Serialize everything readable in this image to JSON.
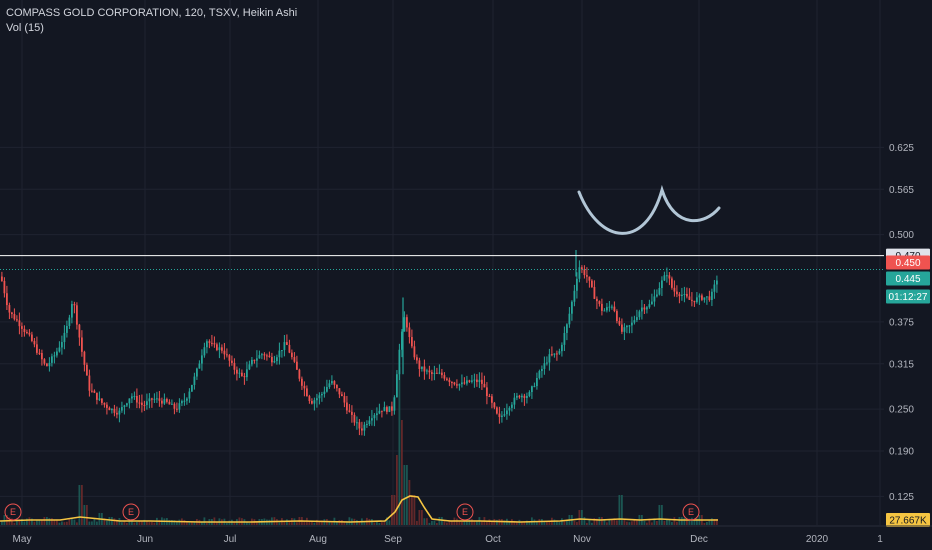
{
  "legend": {
    "title": "COMPASS GOLD CORPORATION, 120, TSXV, Heikin Ashi",
    "vol": "Vol (15)"
  },
  "colors": {
    "background": "#131722",
    "grid": "#1f2330",
    "up": "#26a69a",
    "down": "#ef5350",
    "volume_ma": "#f5c542",
    "pattern": "#b2c6d6",
    "resistance": "#ffffff",
    "dotted": "#26a69a"
  },
  "price_scale": {
    "ticks": [
      "0.625",
      "0.565",
      "0.500",
      "0.375",
      "0.315",
      "0.250",
      "0.190",
      "0.125"
    ],
    "markers": {
      "resistance": "0.470",
      "last": "0.450",
      "prev": "0.445",
      "countdown": "01:12:27",
      "volume": "27.667K"
    }
  },
  "time_scale": {
    "labels": [
      "May",
      "Jun",
      "Jul",
      "Aug",
      "Sep",
      "Oct",
      "Nov",
      "Dec",
      "2020",
      "1"
    ]
  },
  "earnings": {
    "label": "E",
    "count": 5
  },
  "chart_data": {
    "type": "candlestick",
    "style": "Heikin Ashi",
    "symbol": "COMPASS GOLD CORPORATION",
    "interval": "120",
    "exchange": "TSXV",
    "ylim": [
      0.1,
      0.66
    ],
    "x_range": [
      "May",
      "2020"
    ],
    "resistance_level": 0.47,
    "last_price": 0.45,
    "annotations": [
      "horizontal line 0.470",
      "cup and handle curve"
    ],
    "close_path": [
      [
        "May",
        0.44
      ],
      [
        "May",
        0.4
      ],
      [
        "May",
        0.36
      ],
      [
        "May",
        0.31
      ],
      [
        "May",
        0.34
      ],
      [
        "May",
        0.41
      ],
      [
        "May",
        0.33
      ],
      [
        "May",
        0.27
      ],
      [
        "May",
        0.25
      ],
      [
        "Jun",
        0.25
      ],
      [
        "Jun",
        0.27
      ],
      [
        "Jun",
        0.26
      ],
      [
        "Jun",
        0.28
      ],
      [
        "Jun",
        0.26
      ],
      [
        "Jun",
        0.3
      ],
      [
        "Jul",
        0.35
      ],
      [
        "Jul",
        0.32
      ],
      [
        "Jul",
        0.29
      ],
      [
        "Jul",
        0.33
      ],
      [
        "Jul",
        0.3
      ],
      [
        "Jul",
        0.34
      ],
      [
        "Aug",
        0.3
      ],
      [
        "Aug",
        0.27
      ],
      [
        "Aug",
        0.29
      ],
      [
        "Aug",
        0.26
      ],
      [
        "Aug",
        0.23
      ],
      [
        "Aug",
        0.25
      ],
      [
        "Sep",
        0.25
      ],
      [
        "Sep",
        0.26
      ],
      [
        "Sep",
        0.37
      ],
      [
        "Sep",
        0.3
      ],
      [
        "Sep",
        0.31
      ],
      [
        "Sep",
        0.3
      ],
      [
        "Oct",
        0.29
      ],
      [
        "Oct",
        0.28
      ],
      [
        "Oct",
        0.26
      ],
      [
        "Oct",
        0.23
      ],
      [
        "Oct",
        0.27
      ],
      [
        "Oct",
        0.3
      ],
      [
        "Oct",
        0.32
      ],
      [
        "Oct",
        0.35
      ],
      [
        "Oct",
        0.4
      ],
      [
        "Nov",
        0.45
      ],
      [
        "Nov",
        0.42
      ],
      [
        "Nov",
        0.39
      ],
      [
        "Nov",
        0.4
      ],
      [
        "Nov",
        0.36
      ],
      [
        "Nov",
        0.39
      ],
      [
        "Nov",
        0.41
      ],
      [
        "Nov",
        0.45
      ],
      [
        "Nov",
        0.42
      ],
      [
        "Dec",
        0.41
      ],
      [
        "Dec",
        0.41
      ],
      [
        "Dec",
        0.42
      ],
      [
        "Dec",
        0.45
      ]
    ],
    "volume_path": [
      [
        "May",
        2
      ],
      [
        "May",
        3
      ],
      [
        "May",
        3
      ],
      [
        "Jun",
        2
      ],
      [
        "Jun",
        2
      ],
      [
        "Jul",
        2
      ],
      [
        "Jul",
        2
      ],
      [
        "Aug",
        2
      ],
      [
        "Aug",
        2
      ],
      [
        "Sep",
        6
      ],
      [
        "Sep",
        40
      ],
      [
        "Sep",
        25
      ],
      [
        "Sep",
        8
      ],
      [
        "Oct",
        4
      ],
      [
        "Oct",
        3
      ],
      [
        "Nov",
        5
      ],
      [
        "Nov",
        4
      ],
      [
        "Dec",
        4
      ],
      [
        "Dec",
        3
      ]
    ]
  }
}
